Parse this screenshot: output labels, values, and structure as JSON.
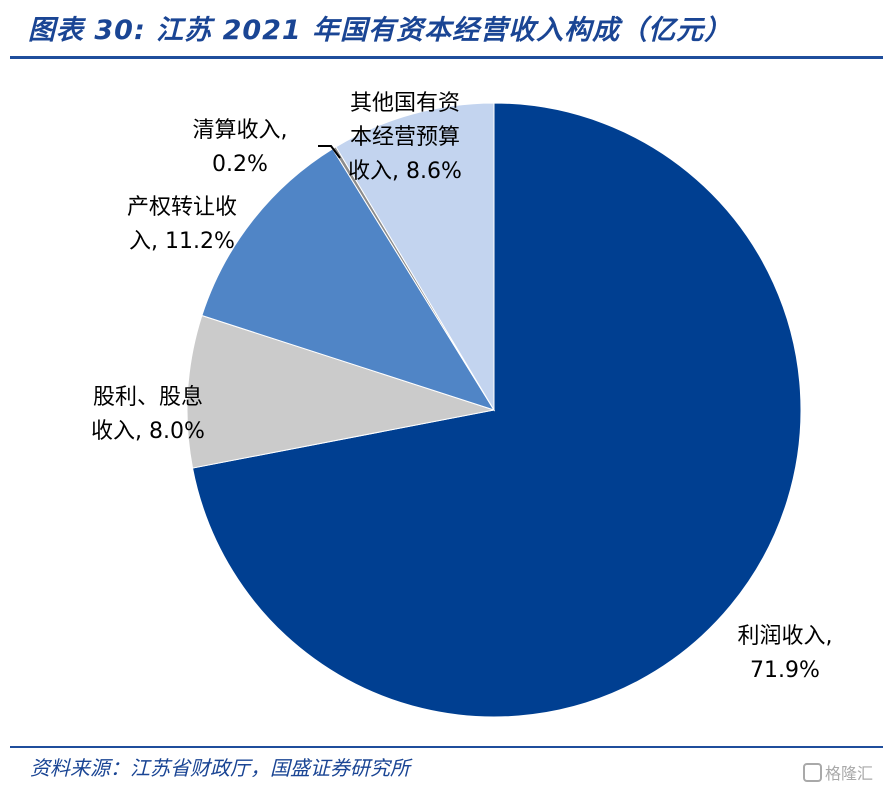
{
  "title": "图表 30: 江苏 2021 年国有资本经营收入构成（亿元）",
  "source": "资料来源：江苏省财政厅，国盛证券研究所",
  "watermark": "格隆汇",
  "chart_data": {
    "type": "pie",
    "start_angle": "12 o'clock",
    "direction": "clockwise",
    "slices": [
      {
        "name": "利润收入",
        "value": 71.9,
        "label_lines": [
          "利润收入,",
          "71.9%"
        ],
        "color": "#003f91"
      },
      {
        "name": "股利、股息收入",
        "value": 8.0,
        "label_lines": [
          "股利、股息",
          "收入, 8.0%"
        ],
        "color": "#cbcbcb"
      },
      {
        "name": "产权转让收入",
        "value": 11.2,
        "label_lines": [
          "产权转让收",
          "入, 11.2%"
        ],
        "color": "#5085c6"
      },
      {
        "name": "清算收入",
        "value": 0.2,
        "label_lines": [
          "清算收入,",
          "0.2%"
        ],
        "color": "#8c8c8c"
      },
      {
        "name": "其他国有资本经营预算收入",
        "value": 8.6,
        "label_lines": [
          "其他国有资",
          "本经营预算",
          "收入, 8.6%"
        ],
        "color": "#c3d4ef"
      }
    ]
  }
}
